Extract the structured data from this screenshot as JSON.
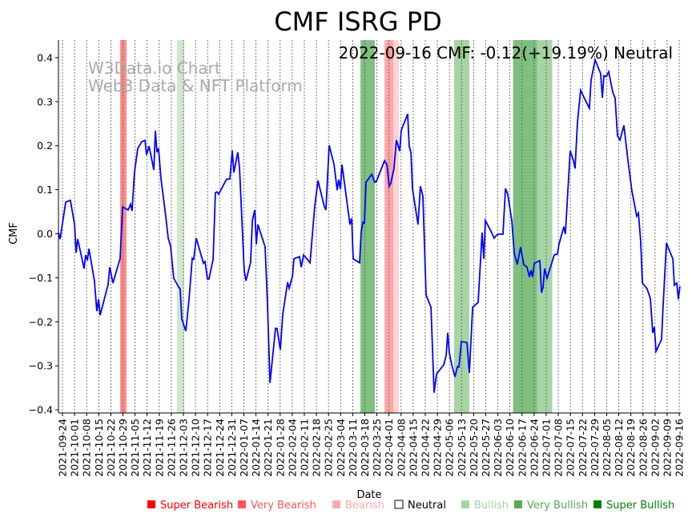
{
  "chart_data": {
    "type": "line",
    "title": "CMF ISRG PD",
    "xlabel": "Date",
    "ylabel": "CMF",
    "annotation": "2022-09-16 CMF: -0.12(+19.19%) Neutral",
    "watermark": [
      "W3Data.io Chart",
      "Web3 Data & NFT Platform"
    ],
    "start_date": "2021-09-24",
    "ylim": [
      -0.41,
      0.44
    ],
    "yticks": [
      -0.4,
      -0.3,
      -0.2,
      -0.1,
      0.0,
      0.1,
      0.2,
      0.3,
      0.4
    ],
    "ytick_labels": [
      "−0.4",
      "−0.3",
      "−0.2",
      "−0.1",
      "0.0",
      "0.1",
      "0.2",
      "0.3",
      "0.4"
    ],
    "xtick_labels": [
      "2021-09-24",
      "2021-10-01",
      "2021-10-08",
      "2021-10-15",
      "2021-10-22",
      "2021-10-29",
      "2021-11-05",
      "2021-11-12",
      "2021-11-19",
      "2021-11-26",
      "2021-12-03",
      "2021-12-10",
      "2021-12-17",
      "2021-12-24",
      "2021-12-31",
      "2022-01-07",
      "2022-01-14",
      "2022-01-21",
      "2022-01-28",
      "2022-02-04",
      "2022-02-11",
      "2022-02-18",
      "2022-02-25",
      "2022-03-04",
      "2022-03-11",
      "2022-03-18",
      "2022-03-25",
      "2022-04-01",
      "2022-04-08",
      "2022-04-15",
      "2022-04-22",
      "2022-04-29",
      "2022-05-06",
      "2022-05-13",
      "2022-05-20",
      "2022-05-27",
      "2022-06-03",
      "2022-06-10",
      "2022-06-17",
      "2022-06-24",
      "2022-07-01",
      "2022-07-08",
      "2022-07-15",
      "2022-07-22",
      "2022-07-29",
      "2022-08-05",
      "2022-08-12",
      "2022-08-19",
      "2022-08-26",
      "2022-09-02",
      "2022-09-09",
      "2022-09-16"
    ],
    "series_color": "#0000ff",
    "series_note": "points are [days since start_date, CMF]",
    "points": [
      [
        -2.3,
        0.003
      ],
      [
        -1.4,
        -0.012
      ],
      [
        1.9,
        0.072
      ],
      [
        4.6,
        0.076
      ],
      [
        7.0,
        0.021
      ],
      [
        7.9,
        -0.043
      ],
      [
        8.8,
        -0.012
      ],
      [
        12.5,
        -0.079
      ],
      [
        13.4,
        -0.048
      ],
      [
        14.4,
        -0.061
      ],
      [
        15.3,
        -0.034
      ],
      [
        18.5,
        -0.107
      ],
      [
        19.9,
        -0.176
      ],
      [
        20.9,
        -0.149
      ],
      [
        21.8,
        -0.185
      ],
      [
        26.4,
        -0.116
      ],
      [
        27.4,
        -0.076
      ],
      [
        29.2,
        -0.112
      ],
      [
        33.4,
        -0.056
      ],
      [
        34.8,
        0.061
      ],
      [
        38.0,
        0.054
      ],
      [
        39.4,
        0.067
      ],
      [
        40.3,
        0.052
      ],
      [
        41.7,
        0.139
      ],
      [
        43.6,
        0.194
      ],
      [
        45.9,
        0.209
      ],
      [
        47.8,
        0.212
      ],
      [
        48.7,
        0.179
      ],
      [
        50.1,
        0.199
      ],
      [
        52.9,
        0.145
      ],
      [
        53.8,
        0.234
      ],
      [
        54.7,
        0.185
      ],
      [
        55.6,
        0.194
      ],
      [
        57.0,
        0.127
      ],
      [
        59.8,
        0.039
      ],
      [
        61.2,
        -0.01
      ],
      [
        62.6,
        -0.028
      ],
      [
        64.4,
        -0.101
      ],
      [
        67.2,
        -0.121
      ],
      [
        68.1,
        -0.125
      ],
      [
        69.1,
        -0.194
      ],
      [
        71.4,
        -0.221
      ],
      [
        73.2,
        -0.152
      ],
      [
        75.1,
        -0.056
      ],
      [
        76.0,
        -0.058
      ],
      [
        77.4,
        -0.01
      ],
      [
        81.6,
        -0.067
      ],
      [
        82.5,
        -0.063
      ],
      [
        83.9,
        -0.103
      ],
      [
        84.8,
        -0.103
      ],
      [
        87.2,
        -0.058
      ],
      [
        88.5,
        0.093
      ],
      [
        89.5,
        0.095
      ],
      [
        90.4,
        0.09
      ],
      [
        95.0,
        0.124
      ],
      [
        96.9,
        0.124
      ],
      [
        98.3,
        0.189
      ],
      [
        99.2,
        0.139
      ],
      [
        101.5,
        0.185
      ],
      [
        102.5,
        0.148
      ],
      [
        105.2,
        -0.083
      ],
      [
        106.2,
        -0.107
      ],
      [
        108.9,
        -0.065
      ],
      [
        109.9,
        0.03
      ],
      [
        111.3,
        0.054
      ],
      [
        112.2,
        -0.024
      ],
      [
        113.1,
        0.021
      ],
      [
        117.3,
        -0.03
      ],
      [
        118.7,
        -0.161
      ],
      [
        120.1,
        -0.339
      ],
      [
        123.3,
        -0.215
      ],
      [
        124.2,
        -0.215
      ],
      [
        126.1,
        -0.264
      ],
      [
        127.5,
        -0.184
      ],
      [
        130.3,
        -0.11
      ],
      [
        131.2,
        -0.124
      ],
      [
        133.1,
        -0.097
      ],
      [
        134.0,
        -0.057
      ],
      [
        137.2,
        -0.052
      ],
      [
        138.2,
        -0.076
      ],
      [
        139.6,
        -0.048
      ],
      [
        143.3,
        -0.066
      ],
      [
        146.0,
        0.061
      ],
      [
        147.9,
        0.121
      ],
      [
        151.6,
        0.061
      ],
      [
        152.5,
        0.054
      ],
      [
        154.4,
        0.201
      ],
      [
        157.2,
        0.157
      ],
      [
        159.0,
        0.099
      ],
      [
        159.9,
        0.123
      ],
      [
        160.9,
        0.101
      ],
      [
        161.8,
        0.157
      ],
      [
        164.6,
        0.075
      ],
      [
        166.4,
        0.021
      ],
      [
        167.4,
        0.035
      ],
      [
        168.3,
        -0.057
      ],
      [
        172.0,
        -0.066
      ],
      [
        172.9,
        0.003
      ],
      [
        173.9,
        0.026
      ],
      [
        174.8,
        0.024
      ],
      [
        175.7,
        0.117
      ],
      [
        179.0,
        0.135
      ],
      [
        180.8,
        0.117
      ],
      [
        181.7,
        0.119
      ],
      [
        186.4,
        0.166
      ],
      [
        187.8,
        0.157
      ],
      [
        189.1,
        0.108
      ],
      [
        190.1,
        0.115
      ],
      [
        191.9,
        0.148
      ],
      [
        193.3,
        0.213
      ],
      [
        195.2,
        0.188
      ],
      [
        196.1,
        0.235
      ],
      [
        199.8,
        0.272
      ],
      [
        200.7,
        0.199
      ],
      [
        201.7,
        0.184
      ],
      [
        202.6,
        0.103
      ],
      [
        205.8,
        0.021
      ],
      [
        207.2,
        0.108
      ],
      [
        208.6,
        0.085
      ],
      [
        210.5,
        -0.139
      ],
      [
        213.3,
        -0.167
      ],
      [
        215.1,
        -0.361
      ],
      [
        216.5,
        -0.319
      ],
      [
        218.8,
        -0.307
      ],
      [
        220.7,
        -0.298
      ],
      [
        222.1,
        -0.276
      ],
      [
        223.0,
        -0.225
      ],
      [
        223.9,
        -0.27
      ],
      [
        225.3,
        -0.298
      ],
      [
        227.2,
        -0.325
      ],
      [
        228.6,
        -0.302
      ],
      [
        229.5,
        -0.303
      ],
      [
        230.9,
        -0.245
      ],
      [
        234.1,
        -0.247
      ],
      [
        235.5,
        -0.316
      ],
      [
        237.4,
        -0.167
      ],
      [
        240.6,
        -0.156
      ],
      [
        242.9,
        0.003
      ],
      [
        243.9,
        -0.057
      ],
      [
        244.8,
        0.03
      ],
      [
        248.0,
        0.006
      ],
      [
        249.9,
        -0.01
      ],
      [
        251.3,
        -0.003
      ],
      [
        252.7,
        -0.001
      ],
      [
        255.0,
        -0.001
      ],
      [
        256.4,
        0.103
      ],
      [
        257.7,
        0.09
      ],
      [
        260.1,
        0.03
      ],
      [
        261.5,
        -0.045
      ],
      [
        263.3,
        -0.07
      ],
      [
        265.2,
        -0.03
      ],
      [
        267.0,
        -0.07
      ],
      [
        268.9,
        -0.076
      ],
      [
        270.3,
        -0.098
      ],
      [
        271.2,
        -0.083
      ],
      [
        272.1,
        -0.098
      ],
      [
        273.1,
        -0.067
      ],
      [
        276.3,
        -0.061
      ],
      [
        277.3,
        -0.134
      ],
      [
        278.2,
        -0.121
      ],
      [
        279.1,
        -0.079
      ],
      [
        280.5,
        -0.101
      ],
      [
        284.7,
        -0.048
      ],
      [
        286.5,
        -0.046
      ],
      [
        287.4,
        -0.024
      ],
      [
        290.2,
        0.016
      ],
      [
        291.1,
        -0.001
      ],
      [
        293.9,
        0.188
      ],
      [
        295.8,
        0.166
      ],
      [
        296.7,
        0.148
      ],
      [
        298.1,
        0.253
      ],
      [
        299.9,
        0.326
      ],
      [
        303.2,
        0.299
      ],
      [
        305.0,
        0.285
      ],
      [
        306.0,
        0.349
      ],
      [
        308.3,
        0.395
      ],
      [
        311.5,
        0.364
      ],
      [
        312.5,
        0.309
      ],
      [
        313.4,
        0.359
      ],
      [
        314.8,
        0.357
      ],
      [
        316.2,
        0.368
      ],
      [
        318.5,
        0.322
      ],
      [
        319.9,
        0.308
      ],
      [
        321.3,
        0.222
      ],
      [
        322.7,
        0.213
      ],
      [
        325.0,
        0.246
      ],
      [
        327.3,
        0.167
      ],
      [
        329.6,
        0.098
      ],
      [
        332.4,
        0.04
      ],
      [
        333.4,
        0.047
      ],
      [
        334.7,
        -0.016
      ],
      [
        335.7,
        -0.112
      ],
      [
        338.4,
        -0.125
      ],
      [
        340.3,
        -0.147
      ],
      [
        341.7,
        -0.225
      ],
      [
        342.6,
        -0.212
      ],
      [
        343.6,
        -0.267
      ],
      [
        346.8,
        -0.24
      ],
      [
        347.7,
        -0.161
      ],
      [
        349.6,
        -0.021
      ],
      [
        351.4,
        -0.039
      ],
      [
        353.3,
        -0.057
      ],
      [
        354.2,
        -0.117
      ],
      [
        355.6,
        -0.112
      ],
      [
        356.5,
        -0.149
      ],
      [
        357.4,
        -0.119
      ]
    ],
    "bands": [
      {
        "from": 33.4,
        "to": 37.1,
        "signal": "Very Bearish",
        "color": "#ff8c8c"
      },
      {
        "from": 66.3,
        "to": 70.5,
        "signal": "Bullish",
        "color": "#cfe8cc"
      },
      {
        "from": 172.5,
        "to": 180.8,
        "signal": "Very Bullish",
        "color": "#7fbf7f"
      },
      {
        "from": 186.4,
        "to": 191.5,
        "signal": "Very Bearish",
        "color": "#ffa6a6"
      },
      {
        "from": 191.5,
        "to": 194.7,
        "signal": "Bearish",
        "color": "#ffd3d3"
      },
      {
        "from": 226.7,
        "to": 235.5,
        "signal": "Bullish",
        "color": "#a6d4a3"
      },
      {
        "from": 260.8,
        "to": 274.7,
        "signal": "Very Bullish",
        "color": "#7fbf7f"
      },
      {
        "from": 274.7,
        "to": 283.5,
        "signal": "Bullish",
        "color": "#a6d4a3"
      }
    ],
    "legend": [
      {
        "label": "Super Bearish",
        "color": "#ff0000",
        "text_color": "#ff0000"
      },
      {
        "label": "Very Bearish",
        "color": "#ff5555",
        "text_color": "#ff5555"
      },
      {
        "label": "Bearish",
        "color": "#ffaaaa",
        "text_color": "#ffaaaa"
      },
      {
        "label": "Neutral",
        "color": "#ffffff",
        "text_color": "#000000"
      },
      {
        "label": "Bullish",
        "color": "#a6d4a3",
        "text_color": "#a6d4a3"
      },
      {
        "label": "Very Bullish",
        "color": "#55aa55",
        "text_color": "#55aa55"
      },
      {
        "label": "Super Bullish",
        "color": "#008000",
        "text_color": "#008000"
      }
    ],
    "legend_placement": "bottom"
  }
}
